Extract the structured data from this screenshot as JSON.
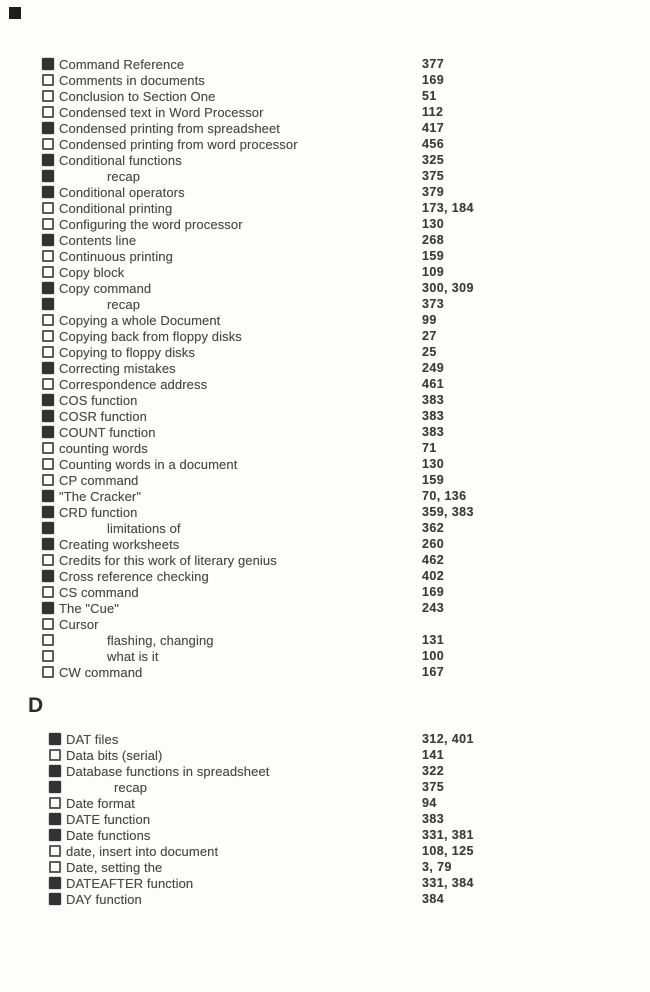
{
  "page": {
    "corner_mark_icon": "filled-square",
    "ink_color": "#3d3d3d",
    "checkbox_fill_color": "#333333",
    "sections": [
      {
        "heading": "",
        "entries": [
          {
            "checked": true,
            "indent": false,
            "label": "Command Reference",
            "pages": "377"
          },
          {
            "checked": false,
            "indent": false,
            "label": "Comments in documents",
            "pages": "169"
          },
          {
            "checked": false,
            "indent": false,
            "label": "Conclusion to Section One",
            "pages": "51"
          },
          {
            "checked": false,
            "indent": false,
            "label": "Condensed text in Word Processor",
            "pages": "112"
          },
          {
            "checked": true,
            "indent": false,
            "label": "Condensed printing from spreadsheet",
            "pages": "417"
          },
          {
            "checked": false,
            "indent": false,
            "label": "Condensed printing from word processor",
            "pages": "456"
          },
          {
            "checked": true,
            "indent": false,
            "label": "Conditional functions",
            "pages": "325"
          },
          {
            "checked": true,
            "indent": true,
            "label": "recap",
            "pages": "375"
          },
          {
            "checked": true,
            "indent": false,
            "label": "Conditional operators",
            "pages": "379"
          },
          {
            "checked": false,
            "indent": false,
            "label": "Conditional printing",
            "pages": "173, 184"
          },
          {
            "checked": false,
            "indent": false,
            "label": "Configuring the word processor",
            "pages": "130"
          },
          {
            "checked": true,
            "indent": false,
            "label": "Contents line",
            "pages": "268"
          },
          {
            "checked": false,
            "indent": false,
            "label": "Continuous printing",
            "pages": "159"
          },
          {
            "checked": false,
            "indent": false,
            "label": "Copy block",
            "pages": "109"
          },
          {
            "checked": true,
            "indent": false,
            "label": "Copy command",
            "pages": "300, 309"
          },
          {
            "checked": true,
            "indent": true,
            "label": "recap",
            "pages": "373"
          },
          {
            "checked": false,
            "indent": false,
            "label": "Copying a whole Document",
            "pages": "99"
          },
          {
            "checked": false,
            "indent": false,
            "label": "Copying back from floppy disks",
            "pages": "27"
          },
          {
            "checked": false,
            "indent": false,
            "label": "Copying to floppy disks",
            "pages": "25"
          },
          {
            "checked": true,
            "indent": false,
            "label": "Correcting mistakes",
            "pages": "249"
          },
          {
            "checked": false,
            "indent": false,
            "label": "Correspondence address",
            "pages": "461"
          },
          {
            "checked": true,
            "indent": false,
            "label": "COS function",
            "pages": "383"
          },
          {
            "checked": true,
            "indent": false,
            "label": "COSR function",
            "pages": "383"
          },
          {
            "checked": true,
            "indent": false,
            "label": "COUNT function",
            "pages": "383"
          },
          {
            "checked": false,
            "indent": false,
            "label": "counting words",
            "pages": "71"
          },
          {
            "checked": false,
            "indent": false,
            "label": "Counting words in a document",
            "pages": "130"
          },
          {
            "checked": false,
            "indent": false,
            "label": "CP command",
            "pages": "159"
          },
          {
            "checked": true,
            "indent": false,
            "label": "\"The Cracker\"",
            "pages": "70, 136"
          },
          {
            "checked": true,
            "indent": false,
            "label": "CRD function",
            "pages": "359, 383"
          },
          {
            "checked": true,
            "indent": true,
            "label": "limitations of",
            "pages": "362"
          },
          {
            "checked": true,
            "indent": false,
            "label": "Creating worksheets",
            "pages": "260"
          },
          {
            "checked": false,
            "indent": false,
            "label": "Credits for this work of literary genius",
            "pages": "462"
          },
          {
            "checked": true,
            "indent": false,
            "label": "Cross reference checking",
            "pages": "402"
          },
          {
            "checked": false,
            "indent": false,
            "label": "CS command",
            "pages": "169"
          },
          {
            "checked": true,
            "indent": false,
            "label": "The \"Cue\"",
            "pages": "243"
          },
          {
            "checked": false,
            "indent": false,
            "label": "Cursor",
            "pages": ""
          },
          {
            "checked": false,
            "indent": true,
            "label": "flashing, changing",
            "pages": "131"
          },
          {
            "checked": false,
            "indent": true,
            "label": "what is it",
            "pages": "100"
          },
          {
            "checked": false,
            "indent": false,
            "label": "CW command",
            "pages": "167"
          }
        ]
      },
      {
        "heading": "D",
        "entries": [
          {
            "checked": true,
            "indent": false,
            "label": "DAT files",
            "pages": "312, 401"
          },
          {
            "checked": false,
            "indent": false,
            "label": "Data bits (serial)",
            "pages": "141"
          },
          {
            "checked": true,
            "indent": false,
            "label": "Database functions in spreadsheet",
            "pages": "322"
          },
          {
            "checked": true,
            "indent": true,
            "label": "recap",
            "pages": "375"
          },
          {
            "checked": false,
            "indent": false,
            "label": "Date format",
            "pages": "94"
          },
          {
            "checked": true,
            "indent": false,
            "label": "DATE function",
            "pages": "383"
          },
          {
            "checked": true,
            "indent": false,
            "label": "Date functions",
            "pages": "331, 381"
          },
          {
            "checked": false,
            "indent": false,
            "label": "date, insert into document",
            "pages": "108, 125"
          },
          {
            "checked": false,
            "indent": false,
            "label": "Date, setting the",
            "pages": "3, 79"
          },
          {
            "checked": true,
            "indent": false,
            "label": "DATEAFTER function",
            "pages": "331, 384"
          },
          {
            "checked": true,
            "indent": false,
            "label": "DAY function",
            "pages": "384"
          }
        ]
      }
    ]
  }
}
